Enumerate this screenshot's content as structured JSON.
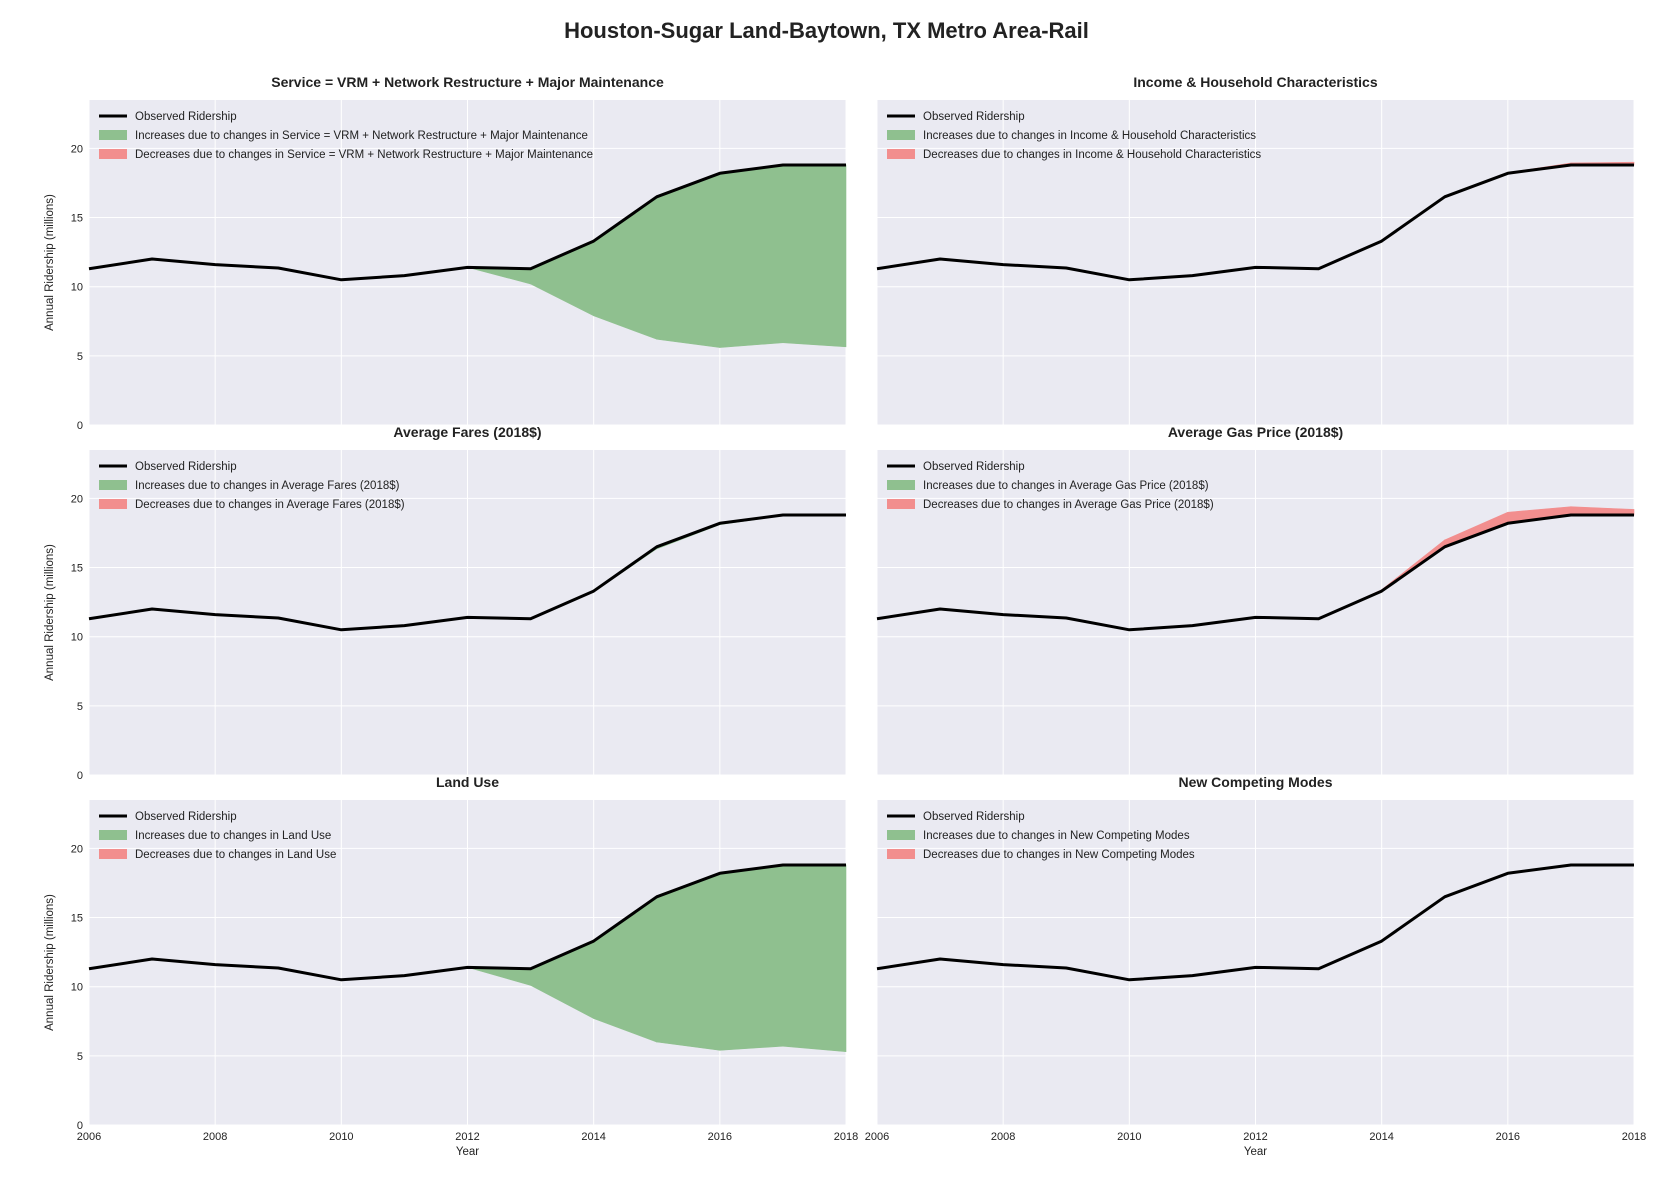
{
  "figure": {
    "title": "Houston-Sugar Land-Baytown, TX Metro Area-Rail",
    "colors": {
      "observed": "#000000",
      "increase": "#8fc08f",
      "decrease": "#f28e8e",
      "panel_bg": "#eaeaf2",
      "grid": "#ffffff"
    }
  },
  "chart_data": [
    {
      "type": "area",
      "title": "Service = VRM + Network Restructure + Major Maintenance",
      "xlabel": "",
      "ylabel": "Annual Ridership (millions)",
      "xlim": [
        2006,
        2018
      ],
      "ylim": [
        0,
        23.5
      ],
      "x_ticks": [
        2006,
        2008,
        2010,
        2012,
        2014,
        2016,
        2018
      ],
      "y_ticks": [
        0,
        5,
        10,
        15,
        20
      ],
      "show_x_ticks": false,
      "show_y_ticks": true,
      "grid": true,
      "legend": "top-left",
      "legend_labels": [
        "Observed Ridership",
        "Increases due to changes in Service = VRM + Network Restructure + Major Maintenance",
        "Decreases due to changes in Service = VRM + Network Restructure + Major Maintenance"
      ],
      "x": [
        2006,
        2007,
        2008,
        2009,
        2010,
        2011,
        2012,
        2013,
        2014,
        2015,
        2016,
        2017,
        2018
      ],
      "observed": [
        11.3,
        12.0,
        11.6,
        11.35,
        10.5,
        10.8,
        11.4,
        11.3,
        13.3,
        16.5,
        18.2,
        18.8,
        18.8
      ],
      "adjusted": [
        11.3,
        12.0,
        11.6,
        11.35,
        10.5,
        10.8,
        11.4,
        10.2,
        7.9,
        6.2,
        5.6,
        5.95,
        5.65
      ]
    },
    {
      "type": "area",
      "title": "Income & Household Characteristics",
      "xlabel": "",
      "ylabel": "",
      "xlim": [
        2006,
        2018
      ],
      "ylim": [
        0,
        23.5
      ],
      "x_ticks": [
        2006,
        2008,
        2010,
        2012,
        2014,
        2016,
        2018
      ],
      "y_ticks": [
        0,
        5,
        10,
        15,
        20
      ],
      "show_x_ticks": false,
      "show_y_ticks": false,
      "grid": true,
      "legend": "top-left",
      "legend_labels": [
        "Observed Ridership",
        "Increases due to changes in Income & Household Characteristics",
        "Decreases due to changes in Income & Household Characteristics"
      ],
      "x": [
        2006,
        2007,
        2008,
        2009,
        2010,
        2011,
        2012,
        2013,
        2014,
        2015,
        2016,
        2017,
        2018
      ],
      "observed": [
        11.3,
        12.0,
        11.6,
        11.35,
        10.5,
        10.8,
        11.4,
        11.3,
        13.3,
        16.5,
        18.2,
        18.8,
        18.8
      ],
      "adjusted": [
        11.3,
        12.0,
        11.6,
        11.35,
        10.5,
        10.8,
        11.4,
        11.3,
        13.3,
        16.5,
        18.25,
        18.95,
        19.0
      ]
    },
    {
      "type": "area",
      "title": "Average Fares (2018$)",
      "xlabel": "",
      "ylabel": "Annual Ridership (millions)",
      "xlim": [
        2006,
        2018
      ],
      "ylim": [
        0,
        23.5
      ],
      "x_ticks": [
        2006,
        2008,
        2010,
        2012,
        2014,
        2016,
        2018
      ],
      "y_ticks": [
        0,
        5,
        10,
        15,
        20
      ],
      "show_x_ticks": false,
      "show_y_ticks": true,
      "grid": true,
      "legend": "top-left",
      "legend_labels": [
        "Observed Ridership",
        "Increases due to changes in Average Fares (2018$)",
        "Decreases due to changes in Average Fares (2018$)"
      ],
      "x": [
        2006,
        2007,
        2008,
        2009,
        2010,
        2011,
        2012,
        2013,
        2014,
        2015,
        2016,
        2017,
        2018
      ],
      "observed": [
        11.3,
        12.0,
        11.6,
        11.35,
        10.5,
        10.8,
        11.4,
        11.3,
        13.3,
        16.5,
        18.2,
        18.8,
        18.8
      ],
      "adjusted": [
        11.3,
        12.0,
        11.6,
        11.35,
        10.5,
        10.8,
        11.4,
        11.3,
        13.25,
        16.35,
        18.1,
        18.75,
        18.8
      ]
    },
    {
      "type": "area",
      "title": "Average Gas Price (2018$)",
      "xlabel": "",
      "ylabel": "",
      "xlim": [
        2006,
        2018
      ],
      "ylim": [
        0,
        23.5
      ],
      "x_ticks": [
        2006,
        2008,
        2010,
        2012,
        2014,
        2016,
        2018
      ],
      "y_ticks": [
        0,
        5,
        10,
        15,
        20
      ],
      "show_x_ticks": false,
      "show_y_ticks": false,
      "grid": true,
      "legend": "top-left",
      "legend_labels": [
        "Observed Ridership",
        "Increases due to changes in Average Gas Price (2018$)",
        "Decreases due to changes in Average Gas Price (2018$)"
      ],
      "x": [
        2006,
        2007,
        2008,
        2009,
        2010,
        2011,
        2012,
        2013,
        2014,
        2015,
        2016,
        2017,
        2018
      ],
      "observed": [
        11.3,
        12.0,
        11.6,
        11.35,
        10.5,
        10.8,
        11.4,
        11.3,
        13.3,
        16.5,
        18.2,
        18.8,
        18.8
      ],
      "adjusted": [
        11.3,
        12.0,
        11.6,
        11.35,
        10.5,
        10.8,
        11.4,
        11.3,
        13.4,
        17.0,
        19.0,
        19.4,
        19.2
      ]
    },
    {
      "type": "area",
      "title": "Land Use",
      "xlabel": "Year",
      "ylabel": "Annual Ridership (millions)",
      "xlim": [
        2006,
        2018
      ],
      "ylim": [
        0,
        23.5
      ],
      "x_ticks": [
        2006,
        2008,
        2010,
        2012,
        2014,
        2016,
        2018
      ],
      "y_ticks": [
        0,
        5,
        10,
        15,
        20
      ],
      "show_x_ticks": true,
      "show_y_ticks": true,
      "grid": true,
      "legend": "top-left",
      "legend_labels": [
        "Observed Ridership",
        "Increases due to changes in Land Use",
        "Decreases due to changes in Land Use"
      ],
      "x": [
        2006,
        2007,
        2008,
        2009,
        2010,
        2011,
        2012,
        2013,
        2014,
        2015,
        2016,
        2017,
        2018
      ],
      "observed": [
        11.3,
        12.0,
        11.6,
        11.35,
        10.5,
        10.8,
        11.4,
        11.3,
        13.3,
        16.5,
        18.2,
        18.8,
        18.8
      ],
      "adjusted": [
        11.3,
        12.0,
        11.6,
        11.35,
        10.5,
        10.8,
        11.4,
        10.1,
        7.7,
        6.0,
        5.4,
        5.7,
        5.3
      ]
    },
    {
      "type": "area",
      "title": "New Competing Modes",
      "xlabel": "Year",
      "ylabel": "",
      "xlim": [
        2006,
        2018
      ],
      "ylim": [
        0,
        23.5
      ],
      "x_ticks": [
        2006,
        2008,
        2010,
        2012,
        2014,
        2016,
        2018
      ],
      "y_ticks": [
        0,
        5,
        10,
        15,
        20
      ],
      "show_x_ticks": true,
      "show_y_ticks": false,
      "grid": true,
      "legend": "top-left",
      "legend_labels": [
        "Observed Ridership",
        "Increases due to changes in New Competing Modes",
        "Decreases due to changes in New Competing Modes"
      ],
      "x": [
        2006,
        2007,
        2008,
        2009,
        2010,
        2011,
        2012,
        2013,
        2014,
        2015,
        2016,
        2017,
        2018
      ],
      "observed": [
        11.3,
        12.0,
        11.6,
        11.35,
        10.5,
        10.8,
        11.4,
        11.3,
        13.3,
        16.5,
        18.2,
        18.8,
        18.8
      ],
      "adjusted": [
        11.3,
        12.0,
        11.6,
        11.35,
        10.5,
        10.8,
        11.4,
        11.3,
        13.3,
        16.5,
        18.2,
        18.8,
        18.8
      ]
    }
  ]
}
